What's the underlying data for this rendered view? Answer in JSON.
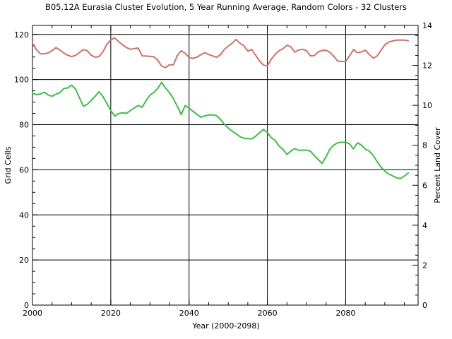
{
  "chart_data": {
    "type": "line",
    "title": "B05.12A Eurasia Cluster Evolution, 5 Year Running Average, Random Colors - 32 Clusters",
    "xlabel": "Year (2000-2098)",
    "ylabel_left": "Grid Cells",
    "ylabel_right": "Percent Land Cover",
    "xlim": [
      2000,
      2098.5
    ],
    "ylim_left": [
      0,
      124
    ],
    "ylim_right": [
      0,
      14
    ],
    "x_major_ticks": [
      2000,
      2020,
      2040,
      2060,
      2080
    ],
    "x_minor_step": 5,
    "y_left_major_ticks": [
      0,
      20,
      40,
      60,
      80,
      100,
      120
    ],
    "y_left_minor_step": 5,
    "y_right_major_ticks": [
      0,
      2,
      4,
      6,
      8,
      10,
      12,
      14
    ],
    "y_right_minor_step": 0.5,
    "grid": true,
    "legend": "none",
    "line_width": 2,
    "axis_color": "#000000",
    "background_color": "#ffffff",
    "series": [
      {
        "name": "cluster-series-red",
        "color": "#cd7268",
        "axis": "left",
        "x_start": 2000,
        "x_step": 1,
        "values": [
          116.1,
          113.3,
          111.4,
          111.4,
          111.8,
          112.8,
          114.2,
          113.1,
          111.8,
          110.8,
          110.2,
          110.7,
          112.0,
          113.3,
          112.8,
          110.8,
          109.9,
          110.2,
          112.3,
          115.6,
          117.6,
          118.5,
          116.9,
          115.4,
          114.2,
          113.4,
          113.7,
          114.0,
          110.5,
          110.4,
          110.3,
          110.1,
          108.6,
          105.9,
          105.3,
          106.6,
          106.5,
          110.7,
          112.8,
          111.6,
          109.8,
          109.4,
          109.9,
          111.0,
          111.9,
          111.1,
          110.5,
          109.8,
          111.0,
          113.4,
          114.8,
          116.1,
          117.8,
          116.1,
          115.0,
          112.6,
          113.3,
          110.8,
          108.2,
          106.4,
          106.1,
          109.0,
          111.2,
          112.8,
          113.7,
          115.2,
          114.5,
          112.2,
          113.1,
          113.4,
          112.8,
          110.5,
          110.6,
          112.3,
          112.9,
          113.0,
          112.0,
          110.3,
          108.1,
          108.0,
          108.1,
          110.5,
          113.3,
          111.9,
          112.2,
          113.0,
          111.2,
          109.5,
          110.4,
          112.9,
          115.4,
          116.6,
          117.1,
          117.5,
          117.5,
          117.5,
          117.2
        ]
      },
      {
        "name": "cluster-series-green",
        "color": "#3cbd4a",
        "axis": "left",
        "x_start": 2000,
        "x_step": 1,
        "values": [
          93.9,
          93.3,
          93.6,
          94.4,
          93.2,
          92.6,
          93.5,
          94.2,
          96.0,
          96.3,
          97.5,
          95.8,
          91.9,
          88.2,
          89.0,
          90.7,
          92.6,
          94.6,
          92.5,
          89.4,
          86.3,
          83.8,
          84.9,
          85.3,
          85.0,
          86.2,
          87.4,
          88.5,
          87.7,
          90.6,
          93.1,
          94.3,
          96.1,
          98.8,
          96.2,
          94.2,
          91.5,
          88.1,
          84.5,
          88.5,
          87.3,
          85.9,
          84.6,
          83.3,
          83.9,
          84.3,
          84.3,
          84.0,
          82.4,
          80.2,
          78.5,
          77.1,
          76.0,
          74.7,
          74.0,
          73.8,
          73.7,
          74.9,
          76.4,
          77.9,
          76.5,
          74.2,
          73.0,
          70.5,
          69.0,
          66.8,
          68.3,
          69.4,
          68.6,
          68.7,
          68.7,
          68.2,
          66.3,
          64.5,
          62.8,
          65.8,
          69.3,
          71.0,
          72.0,
          72.2,
          72.2,
          71.5,
          69.2,
          72.0,
          71.0,
          69.2,
          68.3,
          66.4,
          63.7,
          61.3,
          59.4,
          58.1,
          57.3,
          56.4,
          56.1,
          57.2,
          58.6
        ]
      }
    ]
  }
}
